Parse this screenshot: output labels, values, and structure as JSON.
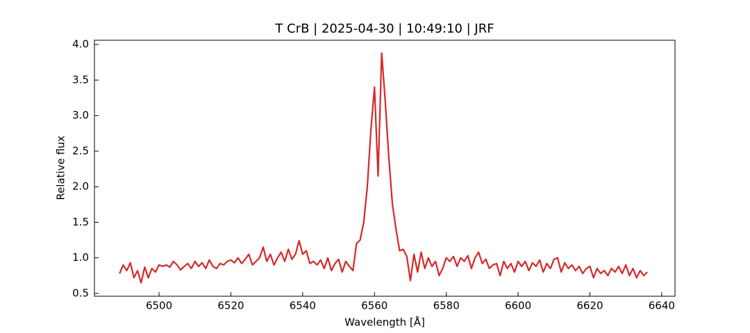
{
  "chart_data": {
    "type": "line",
    "title": "T CrB | 2025-04-30 | 10:49:10 | JRF",
    "xlabel": "Wavelength [Å]",
    "ylabel": "Relative flux",
    "color": "#d62728",
    "x": [
      6489,
      6490,
      6491,
      6492,
      6493,
      6494,
      6495,
      6496,
      6497,
      6498,
      6499,
      6500,
      6501,
      6502,
      6503,
      6504,
      6505,
      6506,
      6507,
      6508,
      6509,
      6510,
      6511,
      6512,
      6513,
      6514,
      6515,
      6516,
      6517,
      6518,
      6519,
      6520,
      6521,
      6522,
      6523,
      6524,
      6525,
      6526,
      6527,
      6528,
      6529,
      6530,
      6531,
      6532,
      6533,
      6534,
      6535,
      6536,
      6537,
      6538,
      6539,
      6540,
      6541,
      6542,
      6543,
      6544,
      6545,
      6546,
      6547,
      6548,
      6549,
      6550,
      6551,
      6552,
      6553,
      6554,
      6555,
      6556,
      6557,
      6558,
      6559,
      6560,
      6561,
      6562,
      6563,
      6564,
      6565,
      6566,
      6567,
      6568,
      6569,
      6570,
      6571,
      6572,
      6573,
      6574,
      6575,
      6576,
      6577,
      6578,
      6579,
      6580,
      6581,
      6582,
      6583,
      6584,
      6585,
      6586,
      6587,
      6588,
      6589,
      6590,
      6591,
      6592,
      6593,
      6594,
      6595,
      6596,
      6597,
      6598,
      6599,
      6600,
      6601,
      6602,
      6603,
      6604,
      6605,
      6606,
      6607,
      6608,
      6609,
      6610,
      6611,
      6612,
      6613,
      6614,
      6615,
      6616,
      6617,
      6618,
      6619,
      6620,
      6621,
      6622,
      6623,
      6624,
      6625,
      6626,
      6627,
      6628,
      6629,
      6630,
      6631,
      6632,
      6633,
      6634,
      6635,
      6636
    ],
    "values": [
      0.78,
      0.9,
      0.82,
      0.93,
      0.72,
      0.82,
      0.65,
      0.87,
      0.72,
      0.85,
      0.8,
      0.9,
      0.88,
      0.9,
      0.87,
      0.95,
      0.9,
      0.83,
      0.88,
      0.92,
      0.85,
      0.95,
      0.88,
      0.93,
      0.85,
      0.97,
      0.88,
      0.85,
      0.92,
      0.9,
      0.95,
      0.97,
      0.93,
      1.0,
      0.92,
      0.98,
      1.05,
      0.9,
      0.95,
      1.0,
      1.15,
      0.95,
      1.05,
      0.9,
      1.0,
      1.08,
      0.95,
      1.12,
      0.98,
      1.05,
      1.24,
      1.05,
      1.1,
      0.92,
      0.95,
      0.9,
      0.97,
      0.85,
      1.0,
      0.82,
      0.92,
      0.98,
      0.8,
      0.95,
      0.88,
      0.82,
      1.2,
      1.25,
      1.5,
      2.0,
      2.8,
      3.4,
      2.15,
      3.88,
      3.2,
      2.4,
      1.75,
      1.4,
      1.1,
      1.12,
      1.02,
      0.68,
      1.05,
      0.8,
      1.08,
      0.85,
      1.0,
      0.88,
      0.95,
      0.75,
      0.85,
      1.0,
      0.95,
      1.02,
      0.88,
      1.0,
      0.95,
      1.03,
      0.85,
      1.0,
      1.08,
      0.92,
      0.98,
      0.85,
      0.9,
      0.92,
      0.75,
      0.95,
      0.85,
      0.92,
      0.8,
      0.95,
      0.88,
      0.95,
      0.82,
      0.93,
      0.88,
      0.97,
      0.8,
      0.92,
      0.85,
      0.98,
      1.0,
      0.8,
      0.93,
      0.85,
      0.9,
      0.82,
      0.88,
      0.78,
      0.85,
      0.88,
      0.72,
      0.85,
      0.78,
      0.82,
      0.75,
      0.85,
      0.8,
      0.88,
      0.78,
      0.9,
      0.75,
      0.85,
      0.72,
      0.82,
      0.75,
      0.8
    ],
    "xlim": [
      6482,
      6643.7
    ],
    "xticks": [
      6500,
      6520,
      6540,
      6560,
      6580,
      6600,
      6620,
      6640
    ],
    "ylim": [
      0.46,
      4.06
    ],
    "yticks": [
      0.5,
      {
        "value": 1,
        "label": "1.0"
      },
      1.5,
      {
        "value": 2,
        "label": "2.0"
      },
      2.5,
      {
        "value": 3,
        "label": "3.0"
      },
      3.5,
      {
        "value": 4,
        "label": "4.0"
      }
    ]
  }
}
